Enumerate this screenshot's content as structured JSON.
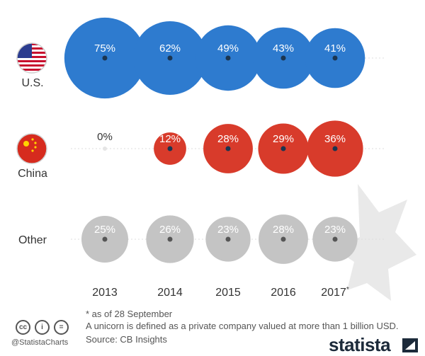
{
  "chart_data": {
    "type": "bubble",
    "categories": [
      "2013",
      "2014",
      "2015",
      "2016",
      "2017*"
    ],
    "series": [
      {
        "name": "U.S.",
        "values": [
          75,
          62,
          49,
          43,
          41
        ],
        "color": "#2e7bcf",
        "flag": "us"
      },
      {
        "name": "China",
        "values": [
          0,
          12,
          28,
          29,
          36
        ],
        "color": "#d83b2b",
        "flag": "cn"
      },
      {
        "name": "Other",
        "values": [
          25,
          26,
          23,
          28,
          23
        ],
        "color": "#c4c4c4",
        "flag": ""
      }
    ],
    "value_suffix": "%"
  },
  "footnote": "* as of 28 September",
  "definition": "A unicorn is defined as a private company valued at more than 1 billion USD.",
  "source": "Source: CB Insights",
  "handle": "@StatistaCharts",
  "brand": "statista",
  "license_icons": [
    "cc",
    "by",
    "nd"
  ]
}
